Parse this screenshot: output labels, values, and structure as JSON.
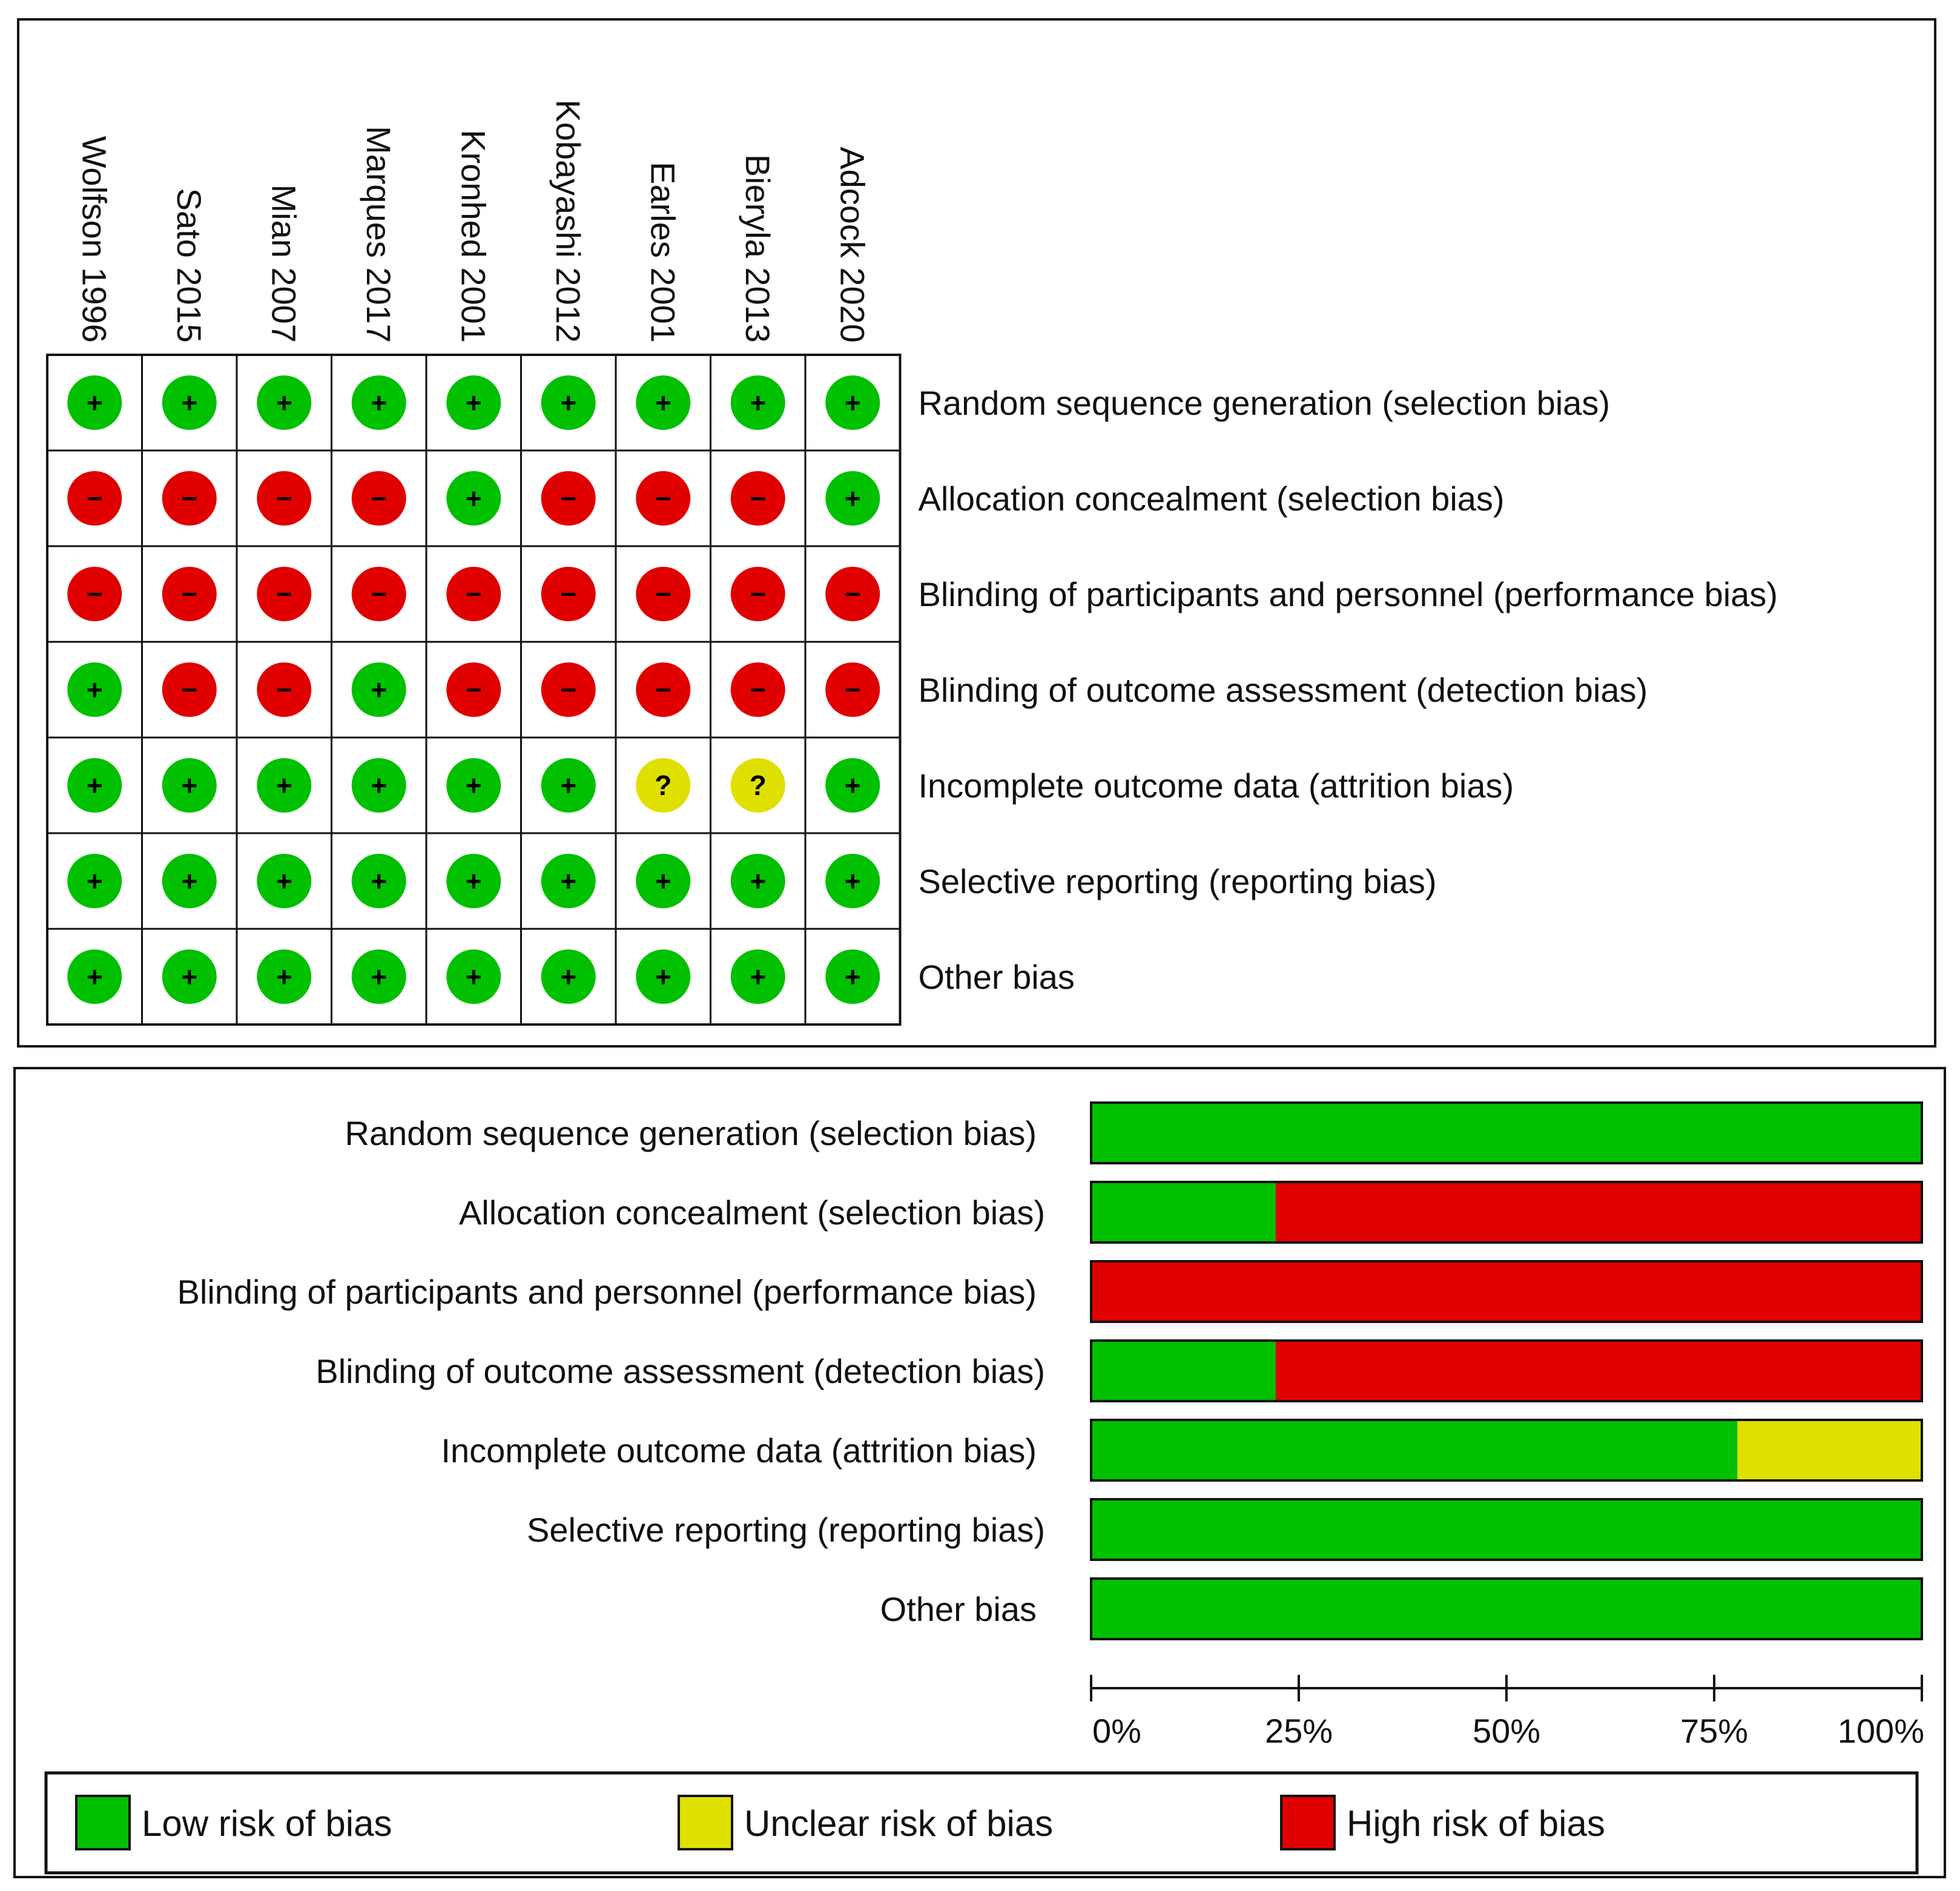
{
  "chart_data": [
    {
      "type": "table",
      "studies": [
        "Wolfson 1996",
        "Sato 2015",
        "Mian 2007",
        "Marques 2017",
        "Kronhed 2001",
        "Kobayashi 2012",
        "Earles 2001",
        "Bieryla 2013",
        "Adcock 2020"
      ],
      "domains": [
        "Random sequence generation (selection bias)",
        "Allocation concealment (selection bias)",
        "Blinding of participants and personnel (performance bias)",
        "Blinding of outcome assessment (detection bias)",
        "Incomplete outcome data (attrition bias)",
        "Selective reporting (reporting bias)",
        "Other bias"
      ],
      "judgements": [
        [
          "low",
          "low",
          "low",
          "low",
          "low",
          "low",
          "low",
          "low",
          "low"
        ],
        [
          "high",
          "high",
          "high",
          "high",
          "low",
          "high",
          "high",
          "high",
          "low"
        ],
        [
          "high",
          "high",
          "high",
          "high",
          "high",
          "high",
          "high",
          "high",
          "high"
        ],
        [
          "low",
          "high",
          "high",
          "low",
          "high",
          "high",
          "high",
          "high",
          "high"
        ],
        [
          "low",
          "low",
          "low",
          "low",
          "low",
          "low",
          "unclear",
          "unclear",
          "low"
        ],
        [
          "low",
          "low",
          "low",
          "low",
          "low",
          "low",
          "low",
          "low",
          "low"
        ],
        [
          "low",
          "low",
          "low",
          "low",
          "low",
          "low",
          "low",
          "low",
          "low"
        ]
      ],
      "symbols": {
        "low": "+",
        "high": "−",
        "unclear": "?"
      }
    },
    {
      "type": "bar",
      "stacked": true,
      "orientation": "horizontal",
      "categories": [
        "Random sequence generation (selection bias)",
        "Allocation concealment (selection bias)",
        "Blinding of participants and personnel (performance bias)",
        "Blinding of outcome assessment (detection bias)",
        "Incomplete outcome data (attrition bias)",
        "Selective reporting (reporting bias)",
        "Other bias"
      ],
      "series": [
        {
          "name": "Low risk of bias",
          "key": "low",
          "values": [
            100,
            22.2,
            0,
            22.2,
            77.8,
            100,
            100
          ]
        },
        {
          "name": "Unclear risk of bias",
          "key": "unclear",
          "values": [
            0,
            0,
            0,
            0,
            22.2,
            0,
            0
          ]
        },
        {
          "name": "High risk of bias",
          "key": "high",
          "values": [
            0,
            77.8,
            100,
            77.8,
            0,
            0,
            0
          ]
        }
      ],
      "xlim": [
        0,
        100
      ],
      "xticks": [
        "0%",
        "25%",
        "50%",
        "75%",
        "100%"
      ],
      "legend_position": "bottom"
    }
  ],
  "colors": {
    "low": "#00c000",
    "unclear": "#e0e000",
    "high": "#e00000"
  }
}
